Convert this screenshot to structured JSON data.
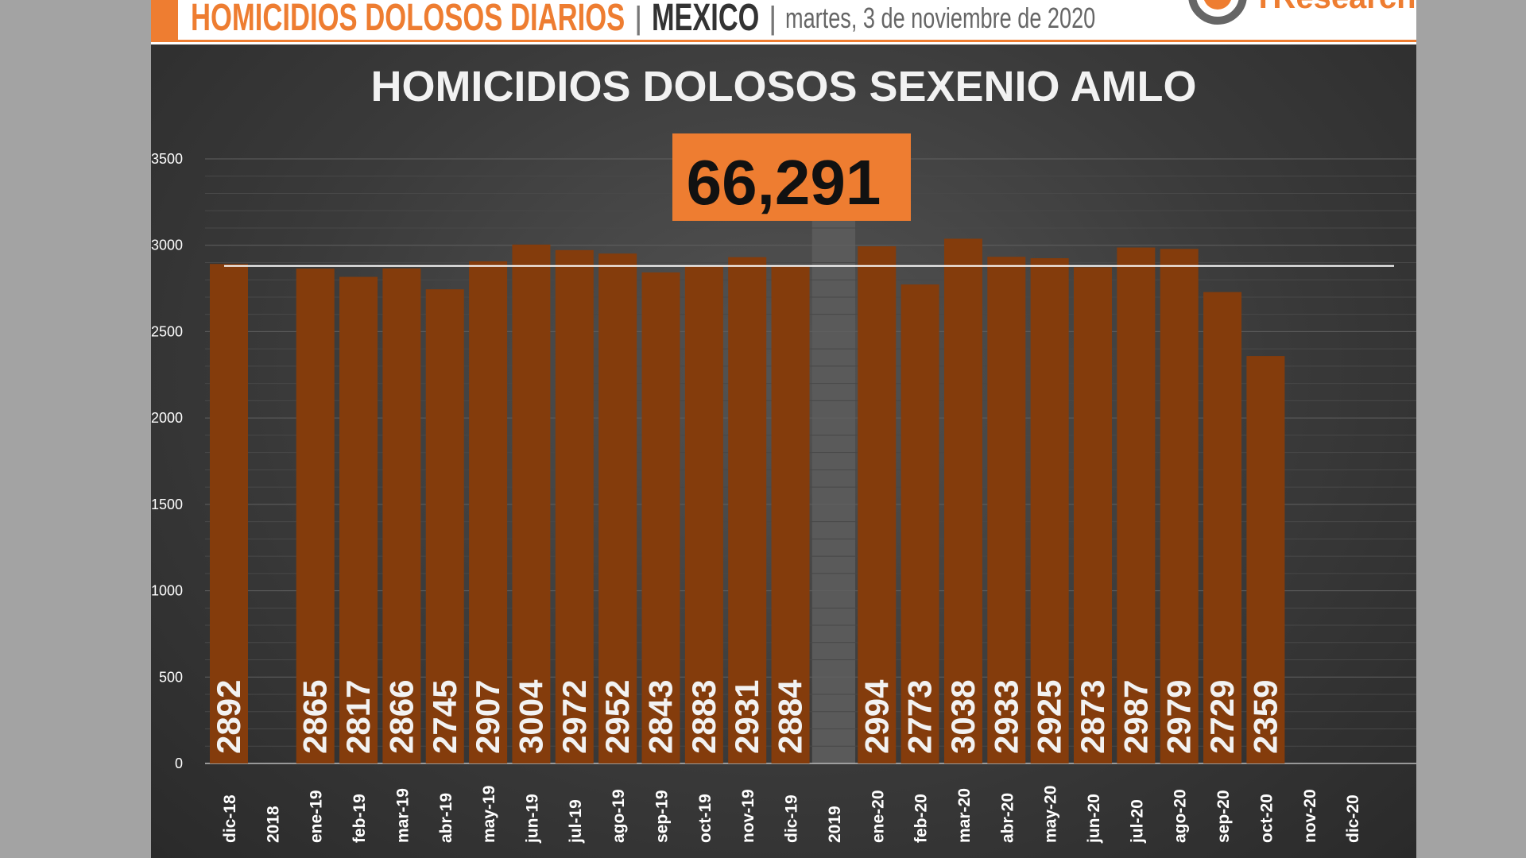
{
  "header": {
    "title": "HOMICIDIOS DOLOSOS DIARIOS",
    "separator": "|",
    "country": "MEXICO",
    "date": "martes, 3 de noviembre de 2020",
    "logo_text": "TResearch"
  },
  "colors": {
    "accent": "#ee7d31",
    "bar": "#843c0c",
    "average_line": "#ffffff"
  },
  "total_box": {
    "value": "66,291"
  },
  "chart_data": {
    "type": "bar",
    "title": "HOMICIDIOS DOLOSOS SEXENIO AMLO",
    "categories": [
      "dic-18",
      "2018",
      "ene-19",
      "feb-19",
      "mar-19",
      "abr-19",
      "may-19",
      "jun-19",
      "jul-19",
      "ago-19",
      "sep-19",
      "oct-19",
      "nov-19",
      "dic-19",
      "2019",
      "ene-20",
      "feb-20",
      "mar-20",
      "abr-20",
      "may-20",
      "jun-20",
      "jul-20",
      "ago-20",
      "sep-20",
      "oct-20",
      "nov-20",
      "dic-20"
    ],
    "values": [
      2892,
      null,
      2865,
      2817,
      2866,
      2745,
      2907,
      3004,
      2972,
      2952,
      2843,
      2883,
      2931,
      2884,
      null,
      2994,
      2773,
      3038,
      2933,
      2925,
      2873,
      2987,
      2979,
      2729,
      2359,
      null,
      null
    ],
    "average_line": 2880,
    "ylim": [
      0,
      3500
    ],
    "yticks": [
      0,
      500,
      1000,
      1500,
      2000,
      2500,
      3000,
      3500
    ],
    "grid": true,
    "data_labels": "vertical-inside-bottom"
  }
}
